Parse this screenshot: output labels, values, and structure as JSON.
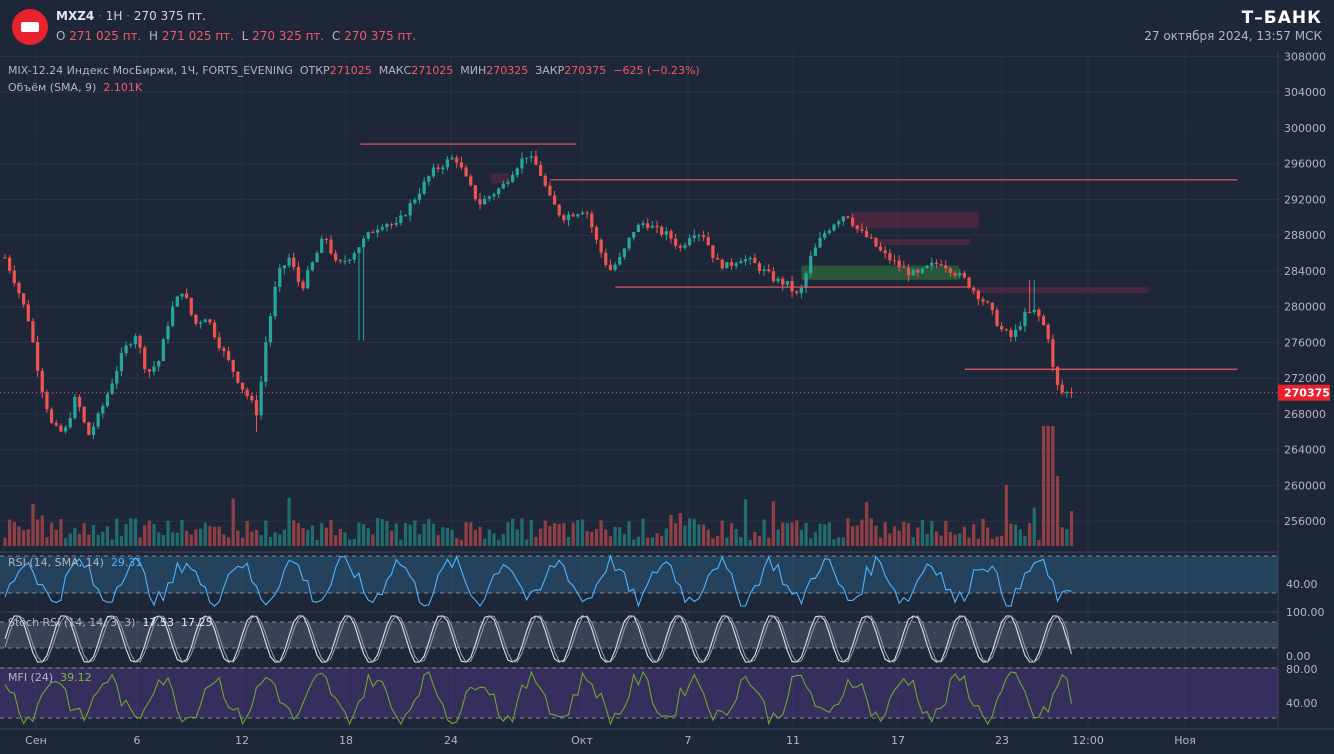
{
  "header": {
    "symbol": "MXZ4",
    "interval": "1H",
    "last_price": "270 375 пт.",
    "open_label": "O",
    "open_value": "271 025 пт.",
    "high_label": "H",
    "high_value": "271 025 пт.",
    "low_label": "L",
    "low_value": "270 325 пт.",
    "close_label": "C",
    "close_value": "270 375 пт.",
    "brand": "Т–БАНК",
    "datetime": "27 октября 2024, 13:57 МСК"
  },
  "legend": {
    "main_title": "MIX-12.24 Индекс МосБиржи, 1Ч, FORTS_EVENING",
    "open_label": "ОТКР",
    "open_value": "271025",
    "high_label": "МАКС",
    "high_value": "271025",
    "low_label": "МИН",
    "low_value": "270325",
    "close_label": "ЗАКР",
    "close_value": "270375",
    "change": "−625 (−0.23%)",
    "volume_label": "Объём (SMA, 9)",
    "volume_value": "2.101K",
    "rsi_label": "RSI (14, SMA, 14)",
    "rsi_value": "29.31",
    "stoch_label": "Stoch RSI (14, 14, 3, 3)",
    "stoch_k": "17.53",
    "stoch_d": "17.25",
    "mfi_label": "MFI (24)",
    "mfi_value": "39.12"
  },
  "colors": {
    "background": "#1e2738",
    "up": "#26a69a",
    "down": "#ef5350",
    "level_line": "#f05a63",
    "rsi_line": "#4fb4ff",
    "stoch_line": "#e0e3eb",
    "mfi_line": "#6aa82f",
    "price_badge": "#e8232e"
  },
  "chart_data": {
    "type": "candlestick",
    "price_axis": {
      "ticks": [
        "308000",
        "304000",
        "300000",
        "296000",
        "292000",
        "288000",
        "284000",
        "280000",
        "276000",
        "272000",
        "268000",
        "264000",
        "260000",
        "256000"
      ],
      "range": [
        253000,
        308500
      ],
      "current_price": "270375"
    },
    "time_axis": {
      "labels": [
        "Сен",
        "6",
        "12",
        "18",
        "24",
        "Окт",
        "7",
        "11",
        "17",
        "23",
        "12:00",
        "Ноя"
      ]
    },
    "close_path": [
      {
        "t": 0,
        "v": 285500
      },
      {
        "t": 0.8,
        "v": 283000
      },
      {
        "t": 2,
        "v": 278500
      },
      {
        "t": 3,
        "v": 271500
      },
      {
        "t": 4,
        "v": 266500
      },
      {
        "t": 5,
        "v": 265800
      },
      {
        "t": 6,
        "v": 270000
      },
      {
        "t": 7,
        "v": 265500
      },
      {
        "t": 8,
        "v": 268000
      },
      {
        "t": 9,
        "v": 271500
      },
      {
        "t": 10,
        "v": 275000
      },
      {
        "t": 11,
        "v": 277000
      },
      {
        "t": 12,
        "v": 272500
      },
      {
        "t": 13,
        "v": 274000
      },
      {
        "t": 14,
        "v": 279500
      },
      {
        "t": 15,
        "v": 282000
      },
      {
        "t": 16,
        "v": 278000
      },
      {
        "t": 17,
        "v": 279000
      },
      {
        "t": 18,
        "v": 276000
      },
      {
        "t": 19,
        "v": 273500
      },
      {
        "t": 20,
        "v": 271000
      },
      {
        "t": 20.7,
        "v": 269500
      },
      {
        "t": 21.3,
        "v": 268000
      },
      {
        "t": 22,
        "v": 276000
      },
      {
        "t": 23,
        "v": 283500
      },
      {
        "t": 24,
        "v": 285500
      },
      {
        "t": 25,
        "v": 282000
      },
      {
        "t": 26,
        "v": 285000
      },
      {
        "t": 27,
        "v": 288000
      },
      {
        "t": 28,
        "v": 284500
      },
      {
        "t": 29,
        "v": 285500
      },
      {
        "t": 30,
        "v": 287000
      },
      {
        "t": 31,
        "v": 288500
      },
      {
        "t": 32,
        "v": 289500
      },
      {
        "t": 33,
        "v": 289000
      },
      {
        "t": 34,
        "v": 291000
      },
      {
        "t": 35,
        "v": 293000
      },
      {
        "t": 36,
        "v": 295000
      },
      {
        "t": 37,
        "v": 296000
      },
      {
        "t": 38,
        "v": 296800
      },
      {
        "t": 39,
        "v": 294000
      },
      {
        "t": 40,
        "v": 291500
      },
      {
        "t": 41,
        "v": 292500
      },
      {
        "t": 42,
        "v": 293500
      },
      {
        "t": 43,
        "v": 295500
      },
      {
        "t": 44,
        "v": 297000
      },
      {
        "t": 45,
        "v": 295500
      },
      {
        "t": 46,
        "v": 292000
      },
      {
        "t": 47,
        "v": 290000
      },
      {
        "t": 48,
        "v": 290500
      },
      {
        "t": 49,
        "v": 291000
      },
      {
        "t": 50,
        "v": 287000
      },
      {
        "t": 51,
        "v": 284000
      },
      {
        "t": 52,
        "v": 285500
      },
      {
        "t": 53,
        "v": 288500
      },
      {
        "t": 54,
        "v": 289500
      },
      {
        "t": 55,
        "v": 288500
      },
      {
        "t": 56,
        "v": 288000
      },
      {
        "t": 57,
        "v": 286500
      },
      {
        "t": 58,
        "v": 288500
      },
      {
        "t": 59,
        "v": 288000
      },
      {
        "t": 60,
        "v": 285000
      },
      {
        "t": 61,
        "v": 284500
      },
      {
        "t": 62,
        "v": 285500
      },
      {
        "t": 63,
        "v": 285000
      },
      {
        "t": 64,
        "v": 284000
      },
      {
        "t": 65,
        "v": 283000
      },
      {
        "t": 66,
        "v": 282500
      },
      {
        "t": 67,
        "v": 281000
      },
      {
        "t": 68,
        "v": 285500
      },
      {
        "t": 69,
        "v": 288000
      },
      {
        "t": 70,
        "v": 289500
      },
      {
        "t": 71,
        "v": 290500
      },
      {
        "t": 72,
        "v": 288500
      },
      {
        "t": 73,
        "v": 287500
      },
      {
        "t": 74,
        "v": 286000
      },
      {
        "t": 75,
        "v": 285000
      },
      {
        "t": 76,
        "v": 284000
      },
      {
        "t": 77,
        "v": 283500
      },
      {
        "t": 78,
        "v": 284500
      },
      {
        "t": 79,
        "v": 285000
      },
      {
        "t": 80,
        "v": 284000
      },
      {
        "t": 81,
        "v": 283000
      },
      {
        "t": 82,
        "v": 281500
      },
      {
        "t": 83,
        "v": 280000
      },
      {
        "t": 84,
        "v": 277500
      },
      {
        "t": 85,
        "v": 276500
      },
      {
        "t": 86,
        "v": 279000
      },
      {
        "t": 87,
        "v": 279500
      },
      {
        "t": 88,
        "v": 277000
      },
      {
        "t": 88.6,
        "v": 271500
      },
      {
        "t": 89.2,
        "v": 270400
      },
      {
        "t": 90,
        "v": 270375
      }
    ],
    "levels": [
      {
        "price": 298200,
        "from_t": 30.0,
        "to_t": 48.2
      },
      {
        "price": 294200,
        "from_t": 46.0,
        "to_t": 104.0
      },
      {
        "price": 282200,
        "from_t": 51.5,
        "to_t": 81.5
      },
      {
        "price": 273000,
        "from_t": 81.0,
        "to_t": 104.0
      }
    ],
    "zones": [
      {
        "type": "supply",
        "from": 293800,
        "to": 294900,
        "from_t": 41.0,
        "to_t": 42.6
      },
      {
        "type": "supply",
        "from": 288800,
        "to": 290600,
        "from_t": 71.4,
        "to_t": 82.2
      },
      {
        "type": "supply",
        "from": 286900,
        "to": 287600,
        "from_t": 73.5,
        "to_t": 81.5
      },
      {
        "type": "supply",
        "from": 281500,
        "to": 282200,
        "from_t": 81.5,
        "to_t": 96.5
      },
      {
        "type": "demand",
        "from": 283000,
        "to": 284600,
        "from_t": 67.2,
        "to_t": 80.5
      }
    ],
    "indicators": {
      "rsi": {
        "axis_ticks": [
          "40.00"
        ],
        "value": 29.31
      },
      "stoch_rsi": {
        "axis_ticks": [
          "100.00",
          "0.00"
        ],
        "k": 17.53,
        "d": 17.25
      },
      "mfi": {
        "axis_ticks": [
          "80.00",
          "40.00"
        ],
        "value": 39.12
      }
    }
  }
}
